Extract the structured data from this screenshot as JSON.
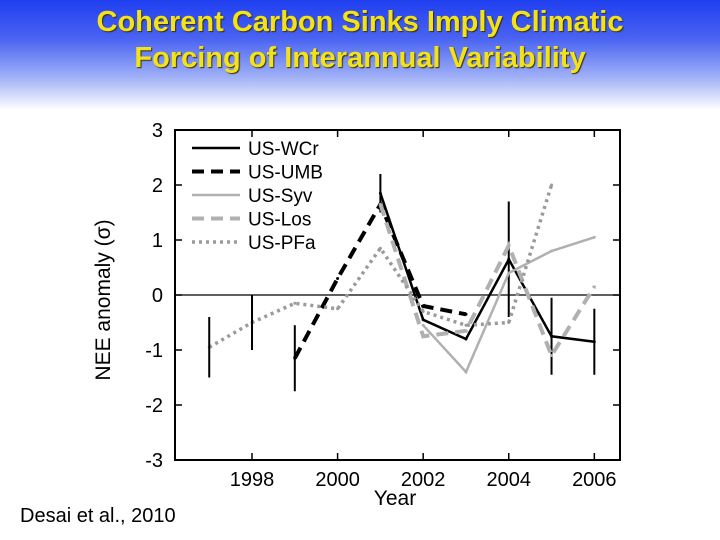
{
  "slide": {
    "title_line1": "Coherent Carbon Sinks Imply Climatic",
    "title_line2": "Forcing of Interannual Variability",
    "citation": "Desai et al., 2010"
  },
  "chart_data": {
    "type": "line",
    "title": "",
    "xlabel": "Year",
    "ylabel": "NEE anomaly (σ)",
    "xlim": [
      1996.2,
      2006.6
    ],
    "ylim": [
      -3,
      3
    ],
    "xticks": [
      1998,
      2000,
      2002,
      2004,
      2006
    ],
    "yticks": [
      -3,
      -2,
      -1,
      0,
      1,
      2,
      3
    ],
    "zero_line": true,
    "grid": false,
    "legend_position": "top-left",
    "series": [
      {
        "name": "US-WCr",
        "color": "#000000",
        "style": "solid",
        "x": [
          2001,
          2002,
          2003,
          2004,
          2005,
          2006
        ],
        "y": [
          1.85,
          -0.45,
          -0.8,
          0.65,
          -0.75,
          -0.85
        ],
        "err": [
          0.35,
          0,
          0,
          1.05,
          0.7,
          0.6
        ]
      },
      {
        "name": "US-UMB",
        "color": "#000000",
        "style": "dashed",
        "x": [
          1999,
          2000,
          2001,
          2002,
          2003
        ],
        "y": [
          -1.15,
          0.3,
          1.65,
          -0.2,
          -0.35
        ],
        "err": [
          0.6,
          0,
          0,
          0,
          0
        ]
      },
      {
        "name": "US-Syv",
        "color": "#b0b0b0",
        "style": "solid",
        "x": [
          2002,
          2003,
          2004,
          2005,
          2006
        ],
        "y": [
          -0.55,
          -1.4,
          0.4,
          0.8,
          1.05
        ],
        "err": [
          0,
          0,
          0,
          0,
          0
        ]
      },
      {
        "name": "US-Los",
        "color": "#b0b0b0",
        "style": "dashed",
        "x": [
          2001,
          2002,
          2003,
          2004,
          2005,
          2006
        ],
        "y": [
          1.65,
          -0.75,
          -0.65,
          0.9,
          -1.1,
          0.15
        ],
        "err": [
          0,
          0,
          0,
          0,
          0,
          0
        ]
      },
      {
        "name": "US-PFa",
        "color": "#9a9a9a",
        "style": "dotted",
        "x": [
          1997,
          1998,
          1999,
          2000,
          2001,
          2002,
          2003,
          2004,
          2005
        ],
        "y": [
          -0.95,
          -0.5,
          -0.15,
          -0.25,
          0.85,
          -0.3,
          -0.55,
          -0.5,
          2.0
        ],
        "err": [
          0.55,
          0.5,
          0,
          0,
          0,
          0,
          0,
          0,
          0
        ]
      }
    ]
  }
}
